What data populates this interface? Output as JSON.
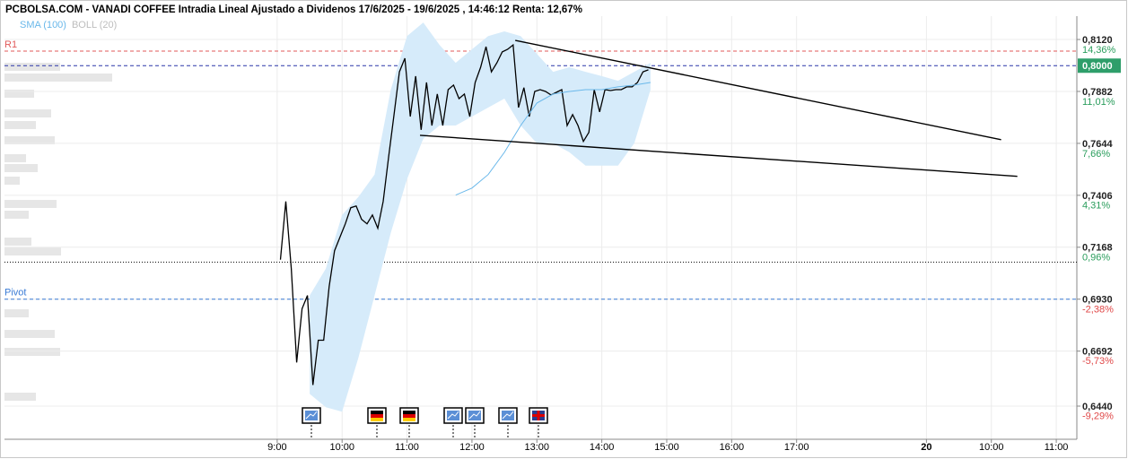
{
  "chart_data": {
    "type": "line",
    "title": "PCBOLSA.COM - VANADI COFFEE Intradia Lineal Ajustado a Dividenos 17/6/2025 - 19/6/2025 , 14:46:12 Renta: 12,67%",
    "series": [
      {
        "color": "#000000",
        "x": [
          3,
          8,
          13,
          18,
          23,
          28,
          33,
          38,
          43,
          48,
          53,
          58,
          63,
          68,
          73,
          78,
          83,
          88,
          93,
          98,
          103,
          108,
          113,
          118,
          123,
          128,
          133,
          138,
          143,
          148,
          153,
          158,
          163,
          168,
          173,
          178,
          183,
          188,
          193,
          198,
          203,
          208,
          213,
          218,
          223,
          228,
          233,
          238,
          243,
          248,
          253,
          258,
          263,
          268,
          273,
          278,
          283,
          288,
          293,
          298,
          303,
          308,
          313,
          318,
          323,
          328,
          333,
          338,
          343
        ],
        "values": [
          0.7111,
          0.7378,
          0.707,
          0.664,
          0.6886,
          0.6947,
          0.6537,
          0.6742,
          0.6742,
          0.6988,
          0.7152,
          0.7214,
          0.7275,
          0.7349,
          0.7357,
          0.7296,
          0.7275,
          0.7316,
          0.7255,
          0.7378,
          0.7583,
          0.7776,
          0.7972,
          0.8034,
          0.7767,
          0.7952,
          0.7706,
          0.7923,
          0.7726,
          0.787,
          0.7726,
          0.789,
          0.7911,
          0.7849,
          0.787,
          0.7767,
          0.7923,
          0.7993,
          0.8087,
          0.7972,
          0.8013,
          0.8063,
          0.8075,
          0.8095,
          0.7808,
          0.7899,
          0.7767,
          0.7882,
          0.789,
          0.7882,
          0.7866,
          0.7878,
          0.789,
          0.7726,
          0.7776,
          0.7726,
          0.7653,
          0.7694,
          0.789,
          0.7788,
          0.789,
          0.7886,
          0.789,
          0.789,
          0.7903,
          0.7903,
          0.7923,
          0.7972,
          0.7981
        ]
      },
      {
        "name": "SMA (100)",
        "color": "#6ab8ea",
        "x": [
          165,
          180,
          195,
          210,
          225,
          240,
          255,
          270,
          285,
          300,
          315,
          330,
          345
        ],
        "values": [
          0.7407,
          0.7439,
          0.7501,
          0.7603,
          0.7726,
          0.7829,
          0.787,
          0.7882,
          0.789,
          0.789,
          0.7903,
          0.7911,
          0.7923
        ]
      },
      {
        "name": "BOLL (20)",
        "color": "#bdbdbd",
        "fill": "#d6ebfa",
        "x": [
          30,
          45,
          60,
          75,
          90,
          105,
          120,
          135,
          150,
          165,
          180,
          195,
          210,
          225,
          240,
          255,
          270,
          285,
          300,
          315,
          330,
          345
        ],
        "upper": [
          0.6947,
          0.707,
          0.7316,
          0.7398,
          0.7501,
          0.789,
          0.8136,
          0.8198,
          0.8095,
          0.8013,
          0.8075,
          0.8136,
          0.8157,
          0.8136,
          0.8054,
          0.7972,
          0.7993,
          0.7972,
          0.7952,
          0.7931,
          0.7972,
          0.8013
        ],
        "lower": [
          0.6496,
          0.6435,
          0.6414,
          0.666,
          0.6947,
          0.7234,
          0.748,
          0.7665,
          0.7726,
          0.7726,
          0.7767,
          0.7808,
          0.7849,
          0.7726,
          0.7644,
          0.7644,
          0.7603,
          0.7542,
          0.7542,
          0.7542,
          0.7644,
          0.789
        ]
      }
    ],
    "levels": [
      {
        "name": "R1",
        "value": 0.8067,
        "color": "#e05a5a"
      },
      {
        "name": "Pivot",
        "value": 0.693,
        "color": "#3a7bd5"
      }
    ],
    "last_price": {
      "value": 0.8,
      "label": "0,8000",
      "color": "#2e9e6a",
      "line_color": "#2a35a8"
    },
    "base_line": 0.71,
    "trendlines": [
      {
        "x": [
          220,
          669
        ],
        "y": [
          0.8116,
          0.7661
        ]
      },
      {
        "x": [
          132,
          684
        ],
        "y": [
          0.7681,
          0.7493
        ]
      }
    ],
    "xlim": [
      -252,
      739
    ],
    "xticks": [
      {
        "value": 0,
        "label": "9:00"
      },
      {
        "value": 60,
        "label": "10:00"
      },
      {
        "value": 120,
        "label": "11:00"
      },
      {
        "value": 180,
        "label": "12:00"
      },
      {
        "value": 240,
        "label": "13:00"
      },
      {
        "value": 300,
        "label": "14:00"
      },
      {
        "value": 360,
        "label": "15:00"
      },
      {
        "value": 420,
        "label": "16:00"
      },
      {
        "value": 480,
        "label": "17:00"
      },
      {
        "value": 600,
        "label": "20"
      },
      {
        "value": 660,
        "label": "10:00"
      },
      {
        "value": 720,
        "label": "11:00"
      }
    ],
    "ylim": [
      0.6288,
      0.8227
    ],
    "yticks": [
      {
        "value": 0.812,
        "label": "0,8120"
      },
      {
        "value": 0.7882,
        "label": "0,7882"
      },
      {
        "value": 0.7644,
        "label": "0,7644"
      },
      {
        "value": 0.7406,
        "label": "0,7406"
      },
      {
        "value": 0.7168,
        "label": "0,7168"
      },
      {
        "value": 0.693,
        "label": "0,6930"
      },
      {
        "value": 0.6692,
        "label": "0,6692"
      },
      {
        "value": 0.644,
        "label": "0,6440"
      }
    ],
    "y2lim": [
      -11.44,
      15.87
    ],
    "y2ticks": [
      {
        "value": 14.36,
        "label": "14,36%"
      },
      {
        "value": 11.01,
        "label": "11,01%"
      },
      {
        "value": 7.66,
        "label": "7,66%"
      },
      {
        "value": 4.31,
        "label": "4,31%"
      },
      {
        "value": 0.96,
        "label": "0,96%"
      },
      {
        "value": -2.38,
        "label": "-2,38%"
      },
      {
        "value": -5.73,
        "label": "-5,73%"
      },
      {
        "value": -9.29,
        "label": "-9,29%"
      }
    ],
    "grid": true
  }
}
